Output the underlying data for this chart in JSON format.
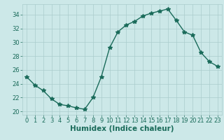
{
  "x": [
    0,
    1,
    2,
    3,
    4,
    5,
    6,
    7,
    8,
    9,
    10,
    11,
    12,
    13,
    14,
    15,
    16,
    17,
    18,
    19,
    20,
    21,
    22,
    23
  ],
  "y": [
    25.0,
    23.8,
    23.0,
    21.8,
    21.0,
    20.8,
    20.5,
    20.3,
    22.0,
    25.0,
    29.2,
    31.5,
    32.5,
    33.0,
    33.8,
    34.2,
    34.5,
    34.8,
    33.2,
    31.5,
    31.0,
    28.5,
    27.2,
    26.5
  ],
  "line_color": "#1a6b5a",
  "marker": "*",
  "bg_color": "#cce8e8",
  "grid_color": "#aacccc",
  "xlabel": "Humidex (Indice chaleur)",
  "xlim": [
    -0.5,
    23.5
  ],
  "ylim": [
    19.5,
    35.5
  ],
  "yticks": [
    20,
    22,
    24,
    26,
    28,
    30,
    32,
    34
  ],
  "xticks": [
    0,
    1,
    2,
    3,
    4,
    5,
    6,
    7,
    8,
    9,
    10,
    11,
    12,
    13,
    14,
    15,
    16,
    17,
    18,
    19,
    20,
    21,
    22,
    23
  ],
  "tick_color": "#1a6b5a",
  "marker_size": 4,
  "line_width": 1.0,
  "font_size_ticks": 6,
  "font_size_xlabel": 7.5
}
